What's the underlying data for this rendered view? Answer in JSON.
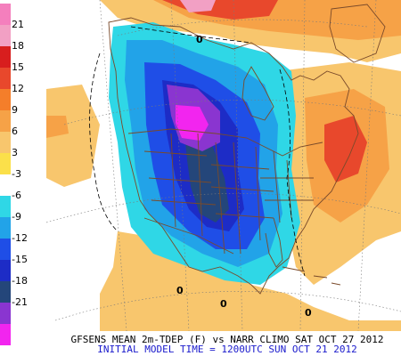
{
  "legend": {
    "labels": [
      "21",
      "18",
      "15",
      "12",
      "9",
      "6",
      "3",
      "-3",
      "-6",
      "-9",
      "-12",
      "-15",
      "-18",
      "-21"
    ],
    "colors": [
      "#f47fbd",
      "#f2a0c4",
      "#d81e1e",
      "#e8482c",
      "#f47e2a",
      "#f6a247",
      "#f8c66d",
      "#fbe04a",
      "#ffffff",
      "#2fd7e6",
      "#22a3e8",
      "#1f4ee7",
      "#1d2cc6",
      "#24467a",
      "#8a35d0",
      "#f225ef"
    ]
  },
  "map": {
    "contour_label": "0"
  },
  "footer": {
    "line1": "GFSENS MEAN 2m-TDEP (F) vs NARR CLIMO SAT OCT 27 2012",
    "line2": "INITIAL MODEL TIME = 1200UTC SUN OCT 21 2012"
  }
}
